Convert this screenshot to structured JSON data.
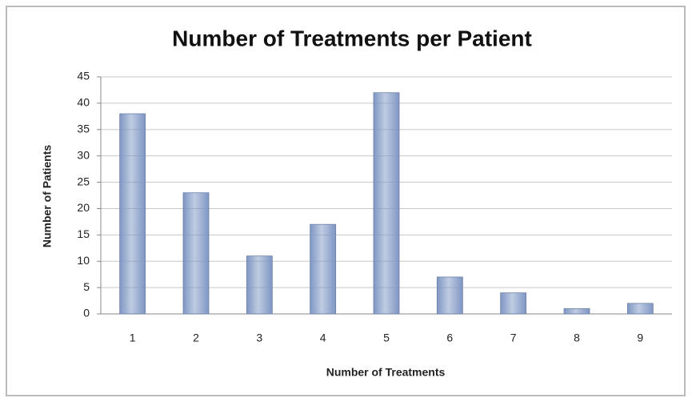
{
  "chart_data": {
    "type": "bar",
    "title": "Number of Treatments per Patient",
    "x_label": "Number of Treatments",
    "y_label": "Number of Patients",
    "categories": [
      "1",
      "2",
      "3",
      "4",
      "5",
      "6",
      "7",
      "8",
      "9"
    ],
    "values": [
      38,
      23,
      11,
      17,
      42,
      7,
      4,
      1,
      2
    ],
    "color": "#7f97c4",
    "ylim": [
      0,
      45
    ],
    "yticks": [
      0,
      5,
      10,
      15,
      20,
      25,
      30,
      35,
      40,
      45
    ],
    "grid": true
  }
}
